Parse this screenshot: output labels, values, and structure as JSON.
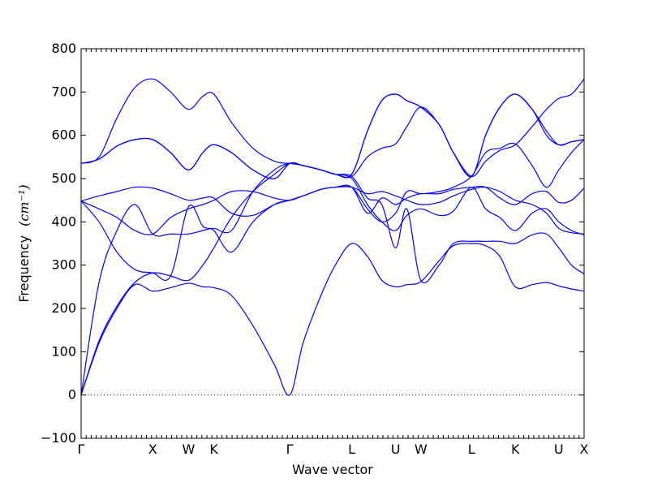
{
  "chart_data": {
    "type": "line",
    "title": "",
    "xlabel": "Wave vector",
    "ylabel": "Frequency",
    "ylabel_unit": "(cm⁻¹)",
    "ylim": [
      -100,
      800
    ],
    "yticks": [
      -100,
      0,
      100,
      200,
      300,
      400,
      500,
      600,
      700,
      800
    ],
    "grid": false,
    "legend": "none",
    "colors": {
      "bands": "#0000ff",
      "zero_line": "#000000"
    },
    "kpath": [
      {
        "label": "Γ",
        "pos": 0.0
      },
      {
        "label": "X",
        "pos": 1.0
      },
      {
        "label": "W",
        "pos": 1.5
      },
      {
        "label": "K",
        "pos": 1.854
      },
      {
        "label": "Γ",
        "pos": 2.914
      },
      {
        "label": "L",
        "pos": 3.78
      },
      {
        "label": "U",
        "pos": 4.392
      },
      {
        "label": "W",
        "pos": 4.746
      },
      {
        "label": "L",
        "pos": 5.453
      },
      {
        "label": "K",
        "pos": 6.065
      },
      {
        "label": "U",
        "pos": 6.672
      },
      {
        "label": "X",
        "pos": 7.026
      }
    ],
    "x_range": [
      0.0,
      7.026
    ],
    "series": [
      {
        "values": [
          [
            0,
            0
          ],
          [
            0.25,
            120
          ],
          [
            0.5,
            200
          ],
          [
            0.75,
            255
          ],
          [
            1.0,
            240
          ],
          [
            1.25,
            248
          ],
          [
            1.5,
            258
          ],
          [
            1.7,
            250
          ],
          [
            1.854,
            248
          ],
          [
            2.1,
            230
          ],
          [
            2.4,
            160
          ],
          [
            2.7,
            70
          ],
          [
            2.914,
            0
          ],
          [
            3.1,
            120
          ],
          [
            3.35,
            230
          ],
          [
            3.55,
            300
          ],
          [
            3.78,
            350
          ],
          [
            4.0,
            320
          ],
          [
            4.2,
            265
          ],
          [
            4.392,
            250
          ],
          [
            4.55,
            255
          ],
          [
            4.746,
            262
          ],
          [
            5.0,
            310
          ],
          [
            5.2,
            345
          ],
          [
            5.453,
            350
          ],
          [
            5.65,
            345
          ],
          [
            5.85,
            320
          ],
          [
            6.065,
            250
          ],
          [
            6.3,
            255
          ],
          [
            6.5,
            260
          ],
          [
            6.672,
            252
          ],
          [
            6.85,
            245
          ],
          [
            7.026,
            240
          ]
        ]
      },
      {
        "values": [
          [
            0,
            0
          ],
          [
            0.25,
            125
          ],
          [
            0.5,
            205
          ],
          [
            0.75,
            260
          ],
          [
            1.0,
            282
          ],
          [
            1.25,
            275
          ],
          [
            1.5,
            265
          ],
          [
            1.7,
            300
          ],
          [
            1.854,
            340
          ],
          [
            2.1,
            410
          ],
          [
            2.4,
            470
          ],
          [
            2.7,
            510
          ],
          [
            2.914,
            535
          ],
          [
            3.1,
            530
          ],
          [
            3.35,
            520
          ],
          [
            3.55,
            510
          ],
          [
            3.78,
            500
          ],
          [
            4.0,
            440
          ],
          [
            4.2,
            400
          ],
          [
            4.392,
            380
          ],
          [
            4.55,
            415
          ],
          [
            4.746,
            430
          ],
          [
            5.0,
            415
          ],
          [
            5.2,
            425
          ],
          [
            5.453,
            480
          ],
          [
            5.65,
            430
          ],
          [
            5.85,
            410
          ],
          [
            6.065,
            380
          ],
          [
            6.3,
            420
          ],
          [
            6.5,
            430
          ],
          [
            6.672,
            400
          ],
          [
            6.85,
            380
          ],
          [
            7.026,
            370
          ]
        ]
      },
      {
        "values": [
          [
            0,
            0
          ],
          [
            0.25,
            260
          ],
          [
            0.5,
            380
          ],
          [
            0.75,
            440
          ],
          [
            1.0,
            372
          ],
          [
            1.25,
            372
          ],
          [
            1.5,
            372
          ],
          [
            1.7,
            380
          ],
          [
            1.854,
            385
          ],
          [
            2.1,
            380
          ],
          [
            2.4,
            470
          ],
          [
            2.7,
            520
          ],
          [
            2.914,
            535
          ],
          [
            3.1,
            530
          ],
          [
            3.35,
            520
          ],
          [
            3.55,
            510
          ],
          [
            3.78,
            505
          ],
          [
            4.0,
            455
          ],
          [
            4.2,
            440
          ],
          [
            4.392,
            340
          ],
          [
            4.55,
            430
          ],
          [
            4.746,
            265
          ],
          [
            5.0,
            300
          ],
          [
            5.2,
            350
          ],
          [
            5.453,
            355
          ],
          [
            5.65,
            355
          ],
          [
            5.85,
            355
          ],
          [
            6.065,
            350
          ],
          [
            6.3,
            370
          ],
          [
            6.5,
            372
          ],
          [
            6.672,
            340
          ],
          [
            6.85,
            300
          ],
          [
            7.026,
            280
          ]
        ]
      },
      {
        "values": [
          [
            0,
            448
          ],
          [
            0.25,
            400
          ],
          [
            0.5,
            330
          ],
          [
            0.75,
            290
          ],
          [
            1.0,
            282
          ],
          [
            1.25,
            275
          ],
          [
            1.5,
            435
          ],
          [
            1.7,
            390
          ],
          [
            1.854,
            380
          ],
          [
            2.1,
            330
          ],
          [
            2.4,
            400
          ],
          [
            2.7,
            440
          ],
          [
            2.914,
            450
          ],
          [
            3.1,
            460
          ],
          [
            3.35,
            475
          ],
          [
            3.55,
            480
          ],
          [
            3.78,
            480
          ],
          [
            4.0,
            465
          ],
          [
            4.2,
            470
          ],
          [
            4.392,
            460
          ],
          [
            4.55,
            450
          ],
          [
            4.746,
            440
          ],
          [
            5.0,
            445
          ],
          [
            5.2,
            460
          ],
          [
            5.453,
            475
          ],
          [
            5.65,
            480
          ],
          [
            5.85,
            470
          ],
          [
            6.065,
            450
          ],
          [
            6.3,
            440
          ],
          [
            6.5,
            420
          ],
          [
            6.672,
            385
          ],
          [
            6.85,
            375
          ],
          [
            7.026,
            372
          ]
        ]
      },
      {
        "values": [
          [
            0,
            448
          ],
          [
            0.25,
            430
          ],
          [
            0.5,
            410
          ],
          [
            0.75,
            380
          ],
          [
            1.0,
            372
          ],
          [
            1.25,
            410
          ],
          [
            1.5,
            430
          ],
          [
            1.7,
            440
          ],
          [
            1.854,
            450
          ],
          [
            2.1,
            470
          ],
          [
            2.4,
            470
          ],
          [
            2.7,
            455
          ],
          [
            2.914,
            450
          ],
          [
            3.1,
            460
          ],
          [
            3.35,
            475
          ],
          [
            3.55,
            480
          ],
          [
            3.78,
            480
          ],
          [
            4.0,
            420
          ],
          [
            4.2,
            455
          ],
          [
            4.392,
            440
          ],
          [
            4.55,
            455
          ],
          [
            4.746,
            465
          ],
          [
            5.0,
            465
          ],
          [
            5.2,
            475
          ],
          [
            5.453,
            480
          ],
          [
            5.65,
            480
          ],
          [
            5.85,
            455
          ],
          [
            6.065,
            440
          ],
          [
            6.3,
            465
          ],
          [
            6.5,
            470
          ],
          [
            6.672,
            445
          ],
          [
            6.85,
            450
          ],
          [
            7.026,
            478
          ]
        ]
      },
      {
        "values": [
          [
            0,
            448
          ],
          [
            0.25,
            460
          ],
          [
            0.5,
            470
          ],
          [
            0.75,
            480
          ],
          [
            1.0,
            478
          ],
          [
            1.25,
            465
          ],
          [
            1.5,
            450
          ],
          [
            1.7,
            455
          ],
          [
            1.854,
            455
          ],
          [
            2.1,
            420
          ],
          [
            2.4,
            415
          ],
          [
            2.7,
            440
          ],
          [
            2.914,
            450
          ],
          [
            3.1,
            460
          ],
          [
            3.35,
            475
          ],
          [
            3.55,
            480
          ],
          [
            3.78,
            480
          ],
          [
            4.0,
            430
          ],
          [
            4.2,
            400
          ],
          [
            4.392,
            420
          ],
          [
            4.55,
            470
          ],
          [
            4.746,
            465
          ],
          [
            5.0,
            470
          ],
          [
            5.2,
            480
          ],
          [
            5.453,
            505
          ],
          [
            5.65,
            560
          ],
          [
            5.85,
            570
          ],
          [
            6.065,
            580
          ],
          [
            6.3,
            530
          ],
          [
            6.5,
            480
          ],
          [
            6.672,
            520
          ],
          [
            6.85,
            560
          ],
          [
            7.026,
            590
          ]
        ]
      },
      {
        "values": [
          [
            0,
            535
          ],
          [
            0.25,
            545
          ],
          [
            0.5,
            575
          ],
          [
            0.75,
            590
          ],
          [
            1.0,
            590
          ],
          [
            1.25,
            560
          ],
          [
            1.5,
            520
          ],
          [
            1.7,
            560
          ],
          [
            1.854,
            578
          ],
          [
            2.1,
            560
          ],
          [
            2.4,
            520
          ],
          [
            2.7,
            500
          ],
          [
            2.914,
            535
          ],
          [
            3.1,
            530
          ],
          [
            3.35,
            520
          ],
          [
            3.55,
            510
          ],
          [
            3.78,
            505
          ],
          [
            4.0,
            550
          ],
          [
            4.2,
            570
          ],
          [
            4.392,
            580
          ],
          [
            4.55,
            620
          ],
          [
            4.746,
            665
          ],
          [
            5.0,
            625
          ],
          [
            5.2,
            560
          ],
          [
            5.453,
            505
          ],
          [
            5.65,
            540
          ],
          [
            5.85,
            565
          ],
          [
            6.065,
            578
          ],
          [
            6.3,
            620
          ],
          [
            6.5,
            660
          ],
          [
            6.672,
            685
          ],
          [
            6.85,
            695
          ],
          [
            7.026,
            730
          ]
        ]
      },
      {
        "values": [
          [
            0,
            535
          ],
          [
            0.25,
            545
          ],
          [
            0.5,
            575
          ],
          [
            0.75,
            590
          ],
          [
            1.0,
            590
          ],
          [
            1.25,
            560
          ],
          [
            1.5,
            520
          ],
          [
            1.7,
            560
          ],
          [
            1.854,
            578
          ],
          [
            2.1,
            560
          ],
          [
            2.4,
            520
          ],
          [
            2.7,
            500
          ],
          [
            2.914,
            535
          ],
          [
            3.1,
            530
          ],
          [
            3.35,
            520
          ],
          [
            3.55,
            510
          ],
          [
            3.78,
            510
          ],
          [
            4.0,
            610
          ],
          [
            4.2,
            680
          ],
          [
            4.392,
            695
          ],
          [
            4.55,
            680
          ],
          [
            4.746,
            665
          ],
          [
            5.0,
            625
          ],
          [
            5.2,
            560
          ],
          [
            5.453,
            505
          ],
          [
            5.65,
            600
          ],
          [
            5.85,
            665
          ],
          [
            6.065,
            695
          ],
          [
            6.3,
            660
          ],
          [
            6.5,
            610
          ],
          [
            6.672,
            578
          ],
          [
            6.85,
            585
          ],
          [
            7.026,
            590
          ]
        ]
      },
      {
        "values": [
          [
            0,
            535
          ],
          [
            0.25,
            550
          ],
          [
            0.5,
            640
          ],
          [
            0.75,
            710
          ],
          [
            1.0,
            730
          ],
          [
            1.25,
            700
          ],
          [
            1.5,
            660
          ],
          [
            1.7,
            690
          ],
          [
            1.854,
            695
          ],
          [
            2.1,
            630
          ],
          [
            2.4,
            570
          ],
          [
            2.7,
            540
          ],
          [
            2.914,
            535
          ],
          [
            3.1,
            530
          ],
          [
            3.35,
            520
          ],
          [
            3.55,
            510
          ],
          [
            3.78,
            510
          ],
          [
            4.0,
            610
          ],
          [
            4.2,
            680
          ],
          [
            4.392,
            695
          ],
          [
            4.55,
            680
          ],
          [
            4.746,
            665
          ],
          [
            5.0,
            625
          ],
          [
            5.2,
            560
          ],
          [
            5.453,
            505
          ],
          [
            5.65,
            600
          ],
          [
            5.85,
            665
          ],
          [
            6.065,
            695
          ],
          [
            6.3,
            660
          ],
          [
            6.5,
            600
          ],
          [
            6.672,
            578
          ],
          [
            6.85,
            585
          ],
          [
            7.026,
            590
          ]
        ]
      }
    ]
  }
}
